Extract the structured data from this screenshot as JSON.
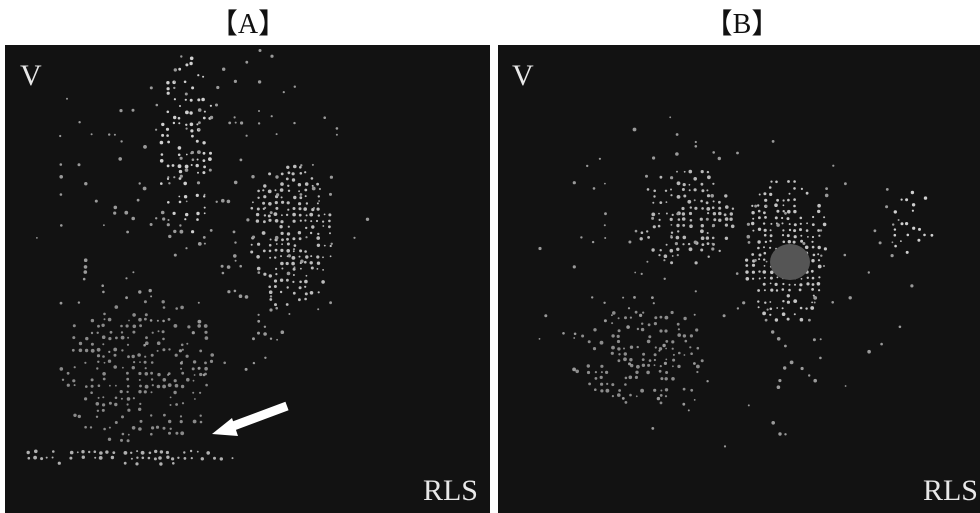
{
  "panels": [
    {
      "label": "【A】",
      "y_axis": "V",
      "x_axis": "RLS"
    },
    {
      "label": "【B】",
      "y_axis": "V",
      "x_axis": "RLS"
    }
  ]
}
